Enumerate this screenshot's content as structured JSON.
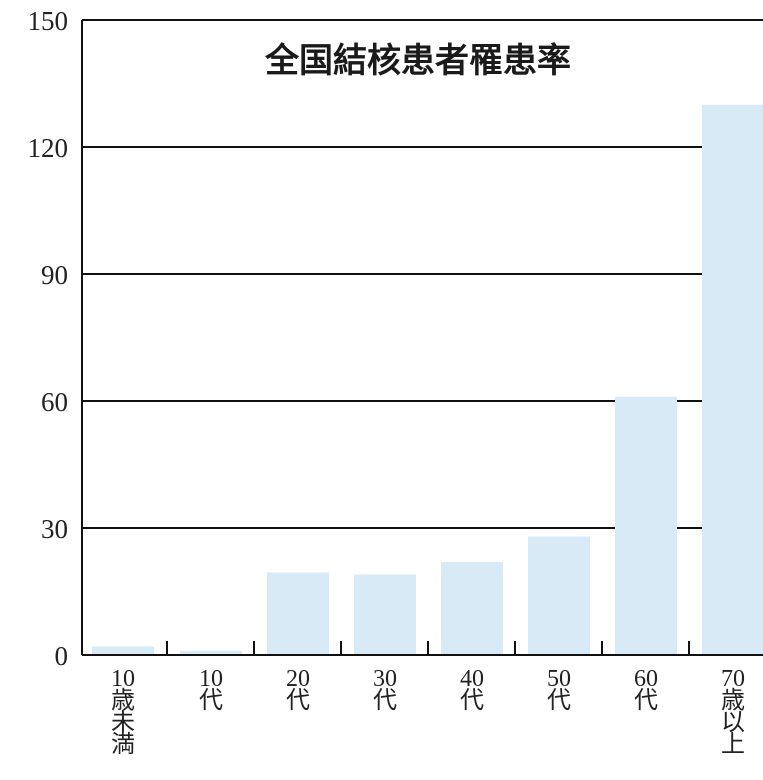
{
  "chart_data": {
    "type": "bar",
    "title": "全国結核患者罹患率",
    "categories": [
      [
        "10",
        "歳",
        "未",
        "満"
      ],
      [
        "10",
        "代"
      ],
      [
        "20",
        "代"
      ],
      [
        "30",
        "代"
      ],
      [
        "40",
        "代"
      ],
      [
        "50",
        "代"
      ],
      [
        "60",
        "代"
      ],
      [
        "70",
        "歳",
        "以",
        "上"
      ]
    ],
    "values": [
      2,
      1,
      19.5,
      19,
      22,
      28,
      61,
      130
    ],
    "ylim": [
      0,
      150
    ],
    "yticks": [
      0,
      30,
      60,
      90,
      120,
      150
    ],
    "grid": true,
    "colors": {
      "bar": "#d8eaf6",
      "grid": "#111111",
      "axis": "#111111"
    }
  }
}
